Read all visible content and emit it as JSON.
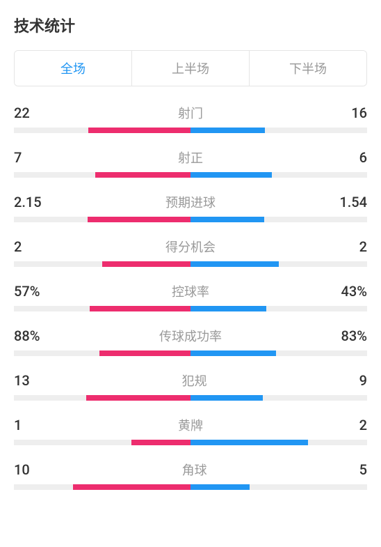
{
  "title": "技术统计",
  "tabs": [
    {
      "label": "全场",
      "active": true
    },
    {
      "label": "上半场",
      "active": false
    },
    {
      "label": "下半场",
      "active": false
    }
  ],
  "colors": {
    "left": "#ed2d6e",
    "right": "#2196f3",
    "track": "#eeeeee",
    "active_tab": "#2196f3",
    "inactive_tab": "#999999",
    "label": "#999999",
    "value": "#333333"
  },
  "stats": [
    {
      "label": "射门",
      "left_display": "22",
      "right_display": "16",
      "left_pct": 57.9,
      "right_pct": 42.1
    },
    {
      "label": "射正",
      "left_display": "7",
      "right_display": "6",
      "left_pct": 53.8,
      "right_pct": 46.2
    },
    {
      "label": "预期进球",
      "left_display": "2.15",
      "right_display": "1.54",
      "left_pct": 58.3,
      "right_pct": 41.7
    },
    {
      "label": "得分机会",
      "left_display": "2",
      "right_display": "2",
      "left_pct": 50,
      "right_pct": 50
    },
    {
      "label": "控球率",
      "left_display": "57%",
      "right_display": "43%",
      "left_pct": 57,
      "right_pct": 43
    },
    {
      "label": "传球成功率",
      "left_display": "88%",
      "right_display": "83%",
      "left_pct": 51.5,
      "right_pct": 48.5
    },
    {
      "label": "犯规",
      "left_display": "13",
      "right_display": "9",
      "left_pct": 59.1,
      "right_pct": 40.9
    },
    {
      "label": "黄牌",
      "left_display": "1",
      "right_display": "2",
      "left_pct": 33.3,
      "right_pct": 66.7
    },
    {
      "label": "角球",
      "left_display": "10",
      "right_display": "5",
      "left_pct": 66.7,
      "right_pct": 33.3
    }
  ]
}
